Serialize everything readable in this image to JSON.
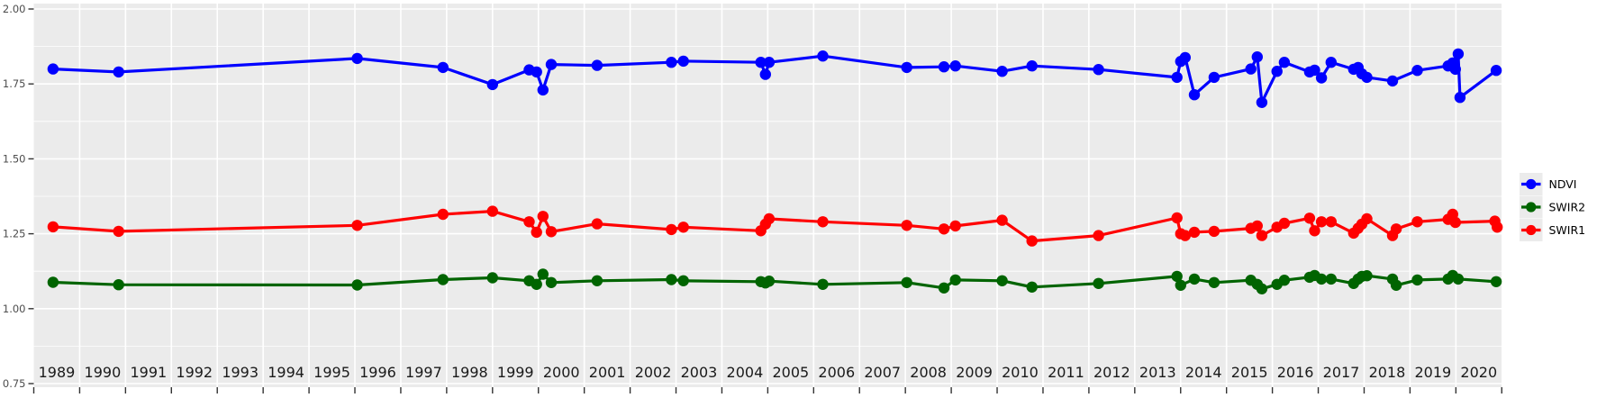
{
  "chart_data": {
    "type": "line",
    "title": "",
    "xlabel": "",
    "ylabel": "",
    "x_tick_labels": [
      "1989",
      "1990",
      "1991",
      "1992",
      "1993",
      "1994",
      "1995",
      "1996",
      "1997",
      "1998",
      "1999",
      "2000",
      "2001",
      "2002",
      "2003",
      "2004",
      "2005",
      "2006",
      "2007",
      "2008",
      "2009",
      "2010",
      "2011",
      "2012",
      "2013",
      "2014",
      "2015",
      "2016",
      "2017",
      "2018",
      "2019",
      "2020"
    ],
    "y_tick_labels": [
      "2.00",
      "1.75",
      "1.50",
      "1.25",
      "1.00",
      "0.75"
    ],
    "y_tick_values": [
      2.0,
      1.75,
      1.5,
      1.25,
      1.0,
      0.75
    ],
    "y_minor_values": [
      1.875,
      1.625,
      1.375,
      1.125,
      0.875
    ],
    "xlim": [
      1989,
      2021
    ],
    "ylim": [
      0.75,
      2.0
    ],
    "grid": "white major horizontal + minor horizontal + yearly vertical on grey panel",
    "legend_position": "right",
    "colors": {
      "panel_bg": "#EBEBEB",
      "grid": "#FFFFFF",
      "tick": "#333333",
      "y_label": "#4D4D4D",
      "x_label": "#1A1A1A",
      "legend_text": "#000000",
      "legend_key_bg": "#EBEBEB"
    },
    "legend": {
      "entries": [
        {
          "label": "NDVI",
          "color": "#0000FF"
        },
        {
          "label": "SWIR2",
          "color": "#006400"
        },
        {
          "label": "SWIR1",
          "color": "#FF0000"
        }
      ]
    },
    "series": [
      {
        "name": "NDVI",
        "color": "#0000FF",
        "points": [
          [
            1989.42,
            1.8
          ],
          [
            1990.85,
            1.79
          ],
          [
            1996.05,
            1.835
          ],
          [
            1997.92,
            1.805
          ],
          [
            1999.0,
            1.748
          ],
          [
            1999.8,
            1.797
          ],
          [
            1999.96,
            1.79
          ],
          [
            2000.1,
            1.73
          ],
          [
            2000.28,
            1.815
          ],
          [
            2001.28,
            1.812
          ],
          [
            2002.9,
            1.822
          ],
          [
            2003.16,
            1.826
          ],
          [
            2004.85,
            1.822
          ],
          [
            2004.95,
            1.782
          ],
          [
            2005.03,
            1.822
          ],
          [
            2006.2,
            1.843
          ],
          [
            2008.03,
            1.805
          ],
          [
            2008.84,
            1.807
          ],
          [
            2009.09,
            1.81
          ],
          [
            2010.11,
            1.792
          ],
          [
            2010.76,
            1.81
          ],
          [
            2012.21,
            1.798
          ],
          [
            2013.92,
            1.772
          ],
          [
            2014.0,
            1.825
          ],
          [
            2014.1,
            1.838
          ],
          [
            2014.3,
            1.714
          ],
          [
            2014.73,
            1.772
          ],
          [
            2015.53,
            1.8
          ],
          [
            2015.67,
            1.84
          ],
          [
            2015.77,
            1.688
          ],
          [
            2016.1,
            1.792
          ],
          [
            2016.26,
            1.822
          ],
          [
            2016.81,
            1.79
          ],
          [
            2016.92,
            1.796
          ],
          [
            2017.07,
            1.77
          ],
          [
            2017.28,
            1.822
          ],
          [
            2017.77,
            1.799
          ],
          [
            2017.87,
            1.805
          ],
          [
            2017.95,
            1.784
          ],
          [
            2018.06,
            1.772
          ],
          [
            2018.62,
            1.76
          ],
          [
            2019.16,
            1.795
          ],
          [
            2019.83,
            1.81
          ],
          [
            2019.93,
            1.82
          ],
          [
            2019.99,
            1.799
          ],
          [
            2020.05,
            1.85
          ],
          [
            2020.09,
            1.705
          ],
          [
            2020.88,
            1.795
          ]
        ]
      },
      {
        "name": "SWIR2",
        "color": "#006400",
        "points": [
          [
            1989.42,
            1.088
          ],
          [
            1990.85,
            1.08
          ],
          [
            1996.05,
            1.079
          ],
          [
            1997.92,
            1.097
          ],
          [
            1999.0,
            1.103
          ],
          [
            1999.8,
            1.093
          ],
          [
            1999.96,
            1.081
          ],
          [
            2000.1,
            1.115
          ],
          [
            2000.28,
            1.087
          ],
          [
            2001.28,
            1.093
          ],
          [
            2002.9,
            1.097
          ],
          [
            2003.16,
            1.093
          ],
          [
            2004.85,
            1.09
          ],
          [
            2004.95,
            1.086
          ],
          [
            2005.03,
            1.092
          ],
          [
            2006.2,
            1.081
          ],
          [
            2008.03,
            1.087
          ],
          [
            2008.84,
            1.069
          ],
          [
            2009.09,
            1.096
          ],
          [
            2010.11,
            1.093
          ],
          [
            2010.76,
            1.072
          ],
          [
            2012.21,
            1.084
          ],
          [
            2013.92,
            1.108
          ],
          [
            2014.0,
            1.078
          ],
          [
            2014.3,
            1.099
          ],
          [
            2014.73,
            1.087
          ],
          [
            2015.53,
            1.095
          ],
          [
            2015.67,
            1.081
          ],
          [
            2015.77,
            1.066
          ],
          [
            2016.1,
            1.081
          ],
          [
            2016.26,
            1.095
          ],
          [
            2016.81,
            1.105
          ],
          [
            2016.92,
            1.111
          ],
          [
            2017.07,
            1.099
          ],
          [
            2017.28,
            1.099
          ],
          [
            2017.77,
            1.084
          ],
          [
            2017.87,
            1.099
          ],
          [
            2017.95,
            1.108
          ],
          [
            2018.06,
            1.11
          ],
          [
            2018.62,
            1.099
          ],
          [
            2018.7,
            1.078
          ],
          [
            2019.16,
            1.096
          ],
          [
            2019.83,
            1.099
          ],
          [
            2019.93,
            1.111
          ],
          [
            2020.05,
            1.099
          ],
          [
            2020.88,
            1.09
          ]
        ]
      },
      {
        "name": "SWIR1",
        "color": "#FF0000",
        "points": [
          [
            1989.42,
            1.273
          ],
          [
            1990.85,
            1.258
          ],
          [
            1996.05,
            1.278
          ],
          [
            1997.92,
            1.315
          ],
          [
            1999.0,
            1.325
          ],
          [
            1999.8,
            1.29
          ],
          [
            1999.96,
            1.255
          ],
          [
            2000.1,
            1.308
          ],
          [
            2000.28,
            1.257
          ],
          [
            2001.28,
            1.283
          ],
          [
            2002.9,
            1.264
          ],
          [
            2003.16,
            1.272
          ],
          [
            2004.85,
            1.26
          ],
          [
            2004.95,
            1.282
          ],
          [
            2005.03,
            1.3
          ],
          [
            2006.2,
            1.29
          ],
          [
            2008.03,
            1.278
          ],
          [
            2008.84,
            1.266
          ],
          [
            2009.09,
            1.276
          ],
          [
            2010.11,
            1.295
          ],
          [
            2010.76,
            1.226
          ],
          [
            2012.21,
            1.244
          ],
          [
            2013.92,
            1.303
          ],
          [
            2014.0,
            1.25
          ],
          [
            2014.1,
            1.244
          ],
          [
            2014.3,
            1.255
          ],
          [
            2014.73,
            1.258
          ],
          [
            2015.53,
            1.268
          ],
          [
            2015.67,
            1.276
          ],
          [
            2015.77,
            1.244
          ],
          [
            2016.1,
            1.272
          ],
          [
            2016.26,
            1.285
          ],
          [
            2016.81,
            1.302
          ],
          [
            2016.92,
            1.26
          ],
          [
            2017.07,
            1.29
          ],
          [
            2017.28,
            1.29
          ],
          [
            2017.77,
            1.252
          ],
          [
            2017.87,
            1.268
          ],
          [
            2017.95,
            1.282
          ],
          [
            2018.06,
            1.3
          ],
          [
            2018.62,
            1.244
          ],
          [
            2018.7,
            1.266
          ],
          [
            2019.16,
            1.29
          ],
          [
            2019.83,
            1.298
          ],
          [
            2019.93,
            1.315
          ],
          [
            2019.99,
            1.288
          ],
          [
            2020.85,
            1.292
          ],
          [
            2020.9,
            1.272
          ]
        ]
      }
    ]
  }
}
